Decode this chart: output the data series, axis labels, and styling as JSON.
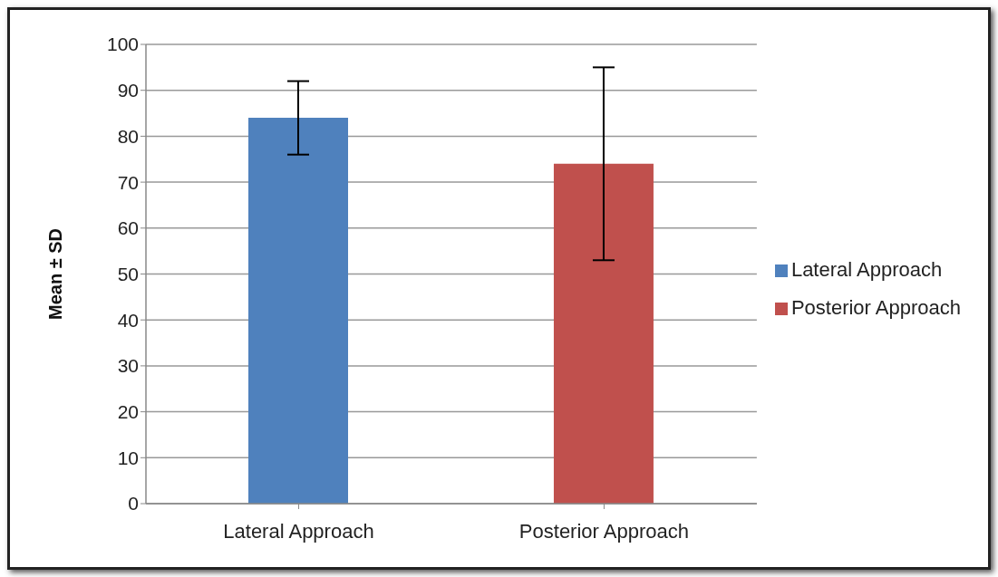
{
  "chart_data": {
    "type": "bar",
    "ylabel": "Mean ± SD",
    "categories": [
      "Lateral Approach",
      "Posterior Approach"
    ],
    "series": [
      {
        "name": "Lateral Approach",
        "color": "#4f81bd",
        "values": [
          84,
          null
        ],
        "errors": [
          8,
          null
        ]
      },
      {
        "name": "Posterior Approach",
        "color": "#c0504d",
        "values": [
          null,
          74
        ],
        "errors": [
          null,
          21
        ]
      }
    ],
    "ylim": [
      0,
      100
    ],
    "yticks": [
      0,
      10,
      20,
      30,
      40,
      50,
      60,
      70,
      80,
      90,
      100
    ],
    "grid": "y",
    "legend": "right"
  }
}
